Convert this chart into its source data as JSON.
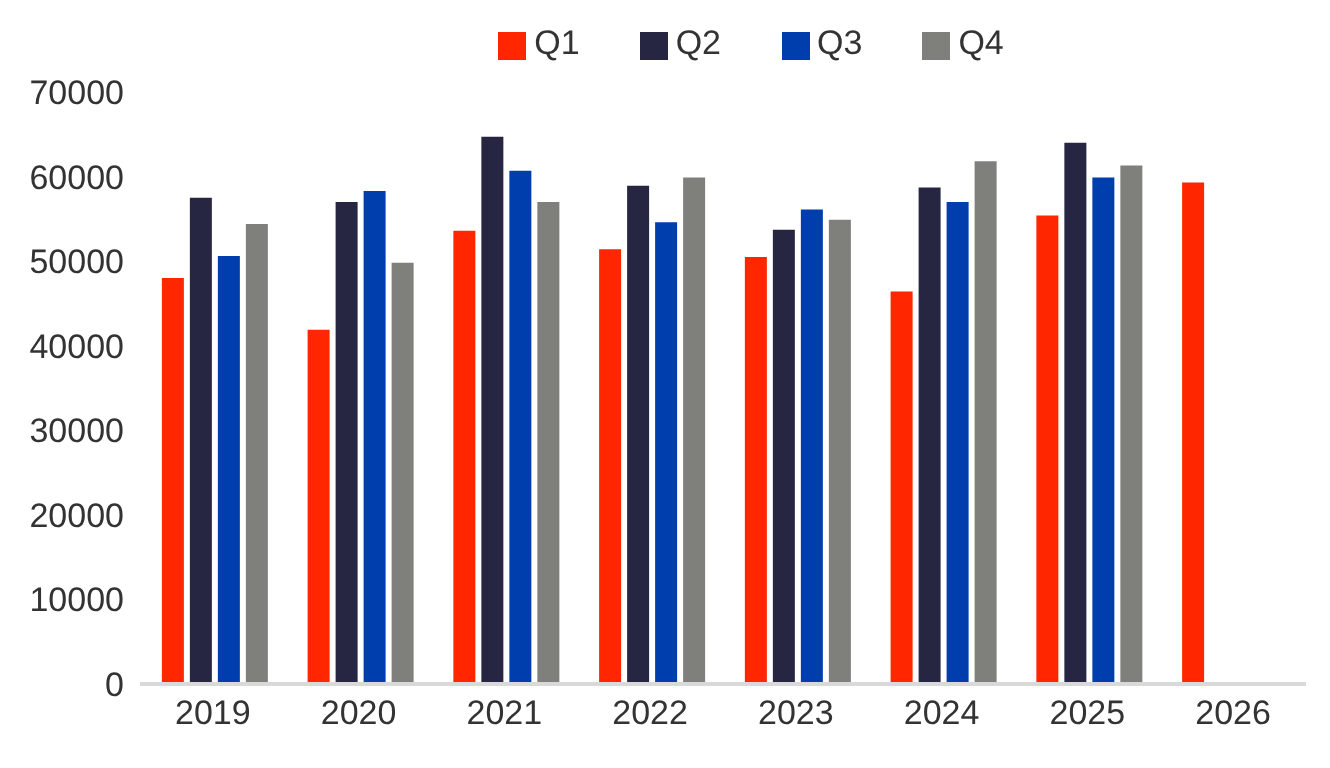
{
  "chart_data": {
    "type": "bar",
    "categories": [
      "2019",
      "2020",
      "2021",
      "2022",
      "2023",
      "2024",
      "2025",
      "2026"
    ],
    "series": [
      {
        "name": "Q1",
        "color": "#ff2600",
        "values": [
          48000,
          41900,
          53600,
          51400,
          50500,
          46400,
          55400,
          59300
        ]
      },
      {
        "name": "Q2",
        "color": "#262642",
        "values": [
          57500,
          57000,
          64700,
          58900,
          53700,
          58700,
          64000,
          null
        ]
      },
      {
        "name": "Q3",
        "color": "#003dad",
        "values": [
          50600,
          58300,
          60700,
          54600,
          56100,
          57000,
          59900,
          null
        ]
      },
      {
        "name": "Q4",
        "color": "#7f7f7b",
        "values": [
          54400,
          49800,
          57000,
          59900,
          54900,
          61800,
          61300,
          null
        ]
      }
    ],
    "ylim": [
      0,
      70000
    ],
    "yticks": [
      0,
      10000,
      20000,
      30000,
      40000,
      50000,
      60000,
      70000
    ],
    "grid": false,
    "legend": "top"
  }
}
